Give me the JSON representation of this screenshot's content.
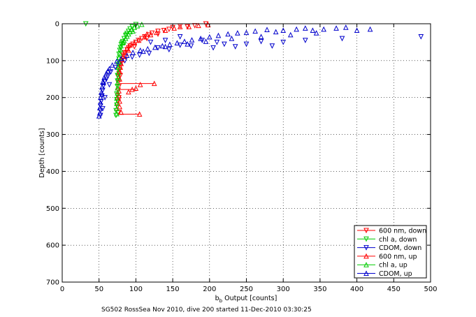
{
  "chart_data": {
    "type": "scatter",
    "xlabel": "b",
    "xlabel_sub": "b",
    "xlabel_rest": " Output [counts]",
    "ylabel": "Depth [counts]",
    "xlim": [
      0,
      500
    ],
    "ylim": [
      700,
      0
    ],
    "y_reversed": true,
    "xticks": [
      0,
      50,
      100,
      150,
      200,
      250,
      300,
      350,
      400,
      450,
      500
    ],
    "yticks": [
      0,
      100,
      200,
      300,
      400,
      500,
      600,
      700
    ],
    "grid": true,
    "legend_position": "bottom-right",
    "footer": "SG502 RossSea Nov 2010, dive 200 started 11-Dec-2010 03:30:25",
    "series": [
      {
        "name": "600 nm, down",
        "color": "#ff0000",
        "marker": "triangle-down",
        "points": [
          [
            195,
            0
          ],
          [
            180,
            5
          ],
          [
            170,
            8
          ],
          [
            160,
            6
          ],
          [
            150,
            10
          ],
          [
            145,
            15
          ],
          [
            138,
            18
          ],
          [
            130,
            20
          ],
          [
            122,
            25
          ],
          [
            118,
            30
          ],
          [
            112,
            35
          ],
          [
            108,
            40
          ],
          [
            104,
            45
          ],
          [
            100,
            50
          ],
          [
            96,
            55
          ],
          [
            92,
            60
          ],
          [
            90,
            65
          ],
          [
            88,
            70
          ],
          [
            85,
            78
          ],
          [
            83,
            85
          ],
          [
            82,
            95
          ],
          [
            80,
            105
          ],
          [
            79,
            115
          ],
          [
            78,
            125
          ],
          [
            77,
            135
          ],
          [
            76,
            145
          ],
          [
            76,
            160
          ],
          [
            77,
            170
          ],
          [
            76,
            180
          ],
          [
            75,
            195
          ],
          [
            76,
            210
          ],
          [
            75,
            225
          ],
          [
            76,
            240
          ],
          [
            130,
            28
          ],
          [
            115,
            40
          ],
          [
            98,
            62
          ],
          [
            86,
            90
          ],
          [
            79,
            140
          ],
          [
            77,
            200
          ]
        ]
      },
      {
        "name": "chl a, down",
        "color": "#00cc00",
        "marker": "triangle-down",
        "points": [
          [
            32,
            0
          ],
          [
            100,
            2
          ],
          [
            95,
            8
          ],
          [
            92,
            14
          ],
          [
            90,
            20
          ],
          [
            88,
            26
          ],
          [
            86,
            32
          ],
          [
            84,
            40
          ],
          [
            82,
            48
          ],
          [
            80,
            56
          ],
          [
            79,
            64
          ],
          [
            78,
            72
          ],
          [
            77,
            82
          ],
          [
            77,
            95
          ],
          [
            76,
            110
          ],
          [
            76,
            125
          ],
          [
            75,
            140
          ],
          [
            75,
            155
          ],
          [
            75,
            170
          ],
          [
            74,
            190
          ],
          [
            74,
            205
          ],
          [
            74,
            220
          ],
          [
            73,
            235
          ],
          [
            73,
            248
          ],
          [
            87,
            30
          ],
          [
            81,
            52
          ]
        ]
      },
      {
        "name": "CDOM, down",
        "color": "#0000cc",
        "marker": "triangle-down",
        "points": [
          [
            487,
            35
          ],
          [
            380,
            40
          ],
          [
            330,
            45
          ],
          [
            300,
            50
          ],
          [
            270,
            48
          ],
          [
            250,
            55
          ],
          [
            235,
            62
          ],
          [
            220,
            55
          ],
          [
            205,
            65
          ],
          [
            190,
            45
          ],
          [
            175,
            60
          ],
          [
            160,
            58
          ],
          [
            145,
            70
          ],
          [
            130,
            65
          ],
          [
            118,
            80
          ],
          [
            105,
            85
          ],
          [
            95,
            90
          ],
          [
            85,
            100
          ],
          [
            78,
            108
          ],
          [
            72,
            118
          ],
          [
            66,
            130
          ],
          [
            62,
            142
          ],
          [
            58,
            155
          ],
          [
            56,
            168
          ],
          [
            55,
            180
          ],
          [
            54,
            195
          ],
          [
            53,
            210
          ],
          [
            52,
            222
          ],
          [
            52,
            235
          ],
          [
            52,
            248
          ],
          [
            60,
            150
          ],
          [
            64,
            165
          ],
          [
            58,
            200
          ],
          [
            55,
            230
          ],
          [
            160,
            35
          ],
          [
            120,
            50
          ],
          [
            140,
            45
          ],
          [
            210,
            50
          ],
          [
            285,
            60
          ]
        ]
      },
      {
        "name": "600 nm, up",
        "color": "#ff0000",
        "marker": "triangle-up",
        "points": [
          [
            198,
            3
          ],
          [
            185,
            5
          ],
          [
            172,
            8
          ],
          [
            160,
            8
          ],
          [
            152,
            12
          ],
          [
            140,
            18
          ],
          [
            128,
            24
          ],
          [
            120,
            30
          ],
          [
            112,
            36
          ],
          [
            104,
            45
          ],
          [
            98,
            52
          ],
          [
            92,
            58
          ],
          [
            88,
            68
          ],
          [
            85,
            78
          ],
          [
            83,
            88
          ],
          [
            81,
            98
          ],
          [
            80,
            108
          ],
          [
            79,
            118
          ],
          [
            78,
            130
          ],
          [
            125,
            162
          ],
          [
            106,
            165
          ],
          [
            100,
            175
          ],
          [
            95,
            178
          ],
          [
            90,
            185
          ],
          [
            105,
            245
          ],
          [
            80,
            240
          ],
          [
            78,
            225
          ],
          [
            78,
            210
          ],
          [
            77,
            195
          ],
          [
            77,
            182
          ],
          [
            78,
            150
          ],
          [
            115,
            28
          ],
          [
            90,
            72
          ]
        ]
      },
      {
        "name": "chl a, up",
        "color": "#00cc00",
        "marker": "triangle-up",
        "points": [
          [
            108,
            2
          ],
          [
            102,
            6
          ],
          [
            98,
            10
          ],
          [
            94,
            16
          ],
          [
            92,
            22
          ],
          [
            90,
            28
          ],
          [
            88,
            34
          ],
          [
            86,
            40
          ],
          [
            84,
            46
          ],
          [
            82,
            52
          ],
          [
            80,
            60
          ],
          [
            79,
            70
          ],
          [
            78,
            80
          ],
          [
            77,
            92
          ],
          [
            77,
            104
          ],
          [
            76,
            118
          ],
          [
            76,
            132
          ],
          [
            76,
            146
          ],
          [
            75,
            160
          ],
          [
            75,
            174
          ],
          [
            75,
            188
          ],
          [
            74,
            202
          ],
          [
            74,
            216
          ],
          [
            74,
            230
          ],
          [
            74,
            244
          ],
          [
            96,
            20
          ],
          [
            83,
            50
          ]
        ]
      },
      {
        "name": "CDOM, up",
        "color": "#0000cc",
        "marker": "triangle-up",
        "points": [
          [
            418,
            15
          ],
          [
            400,
            18
          ],
          [
            385,
            10
          ],
          [
            372,
            12
          ],
          [
            355,
            15
          ],
          [
            340,
            18
          ],
          [
            330,
            12
          ],
          [
            318,
            15
          ],
          [
            300,
            18
          ],
          [
            290,
            22
          ],
          [
            278,
            16
          ],
          [
            262,
            20
          ],
          [
            250,
            24
          ],
          [
            238,
            25
          ],
          [
            225,
            28
          ],
          [
            212,
            32
          ],
          [
            200,
            36
          ],
          [
            188,
            40
          ],
          [
            176,
            44
          ],
          [
            166,
            48
          ],
          [
            156,
            52
          ],
          [
            146,
            56
          ],
          [
            136,
            60
          ],
          [
            126,
            64
          ],
          [
            116,
            68
          ],
          [
            106,
            72
          ],
          [
            96,
            78
          ],
          [
            88,
            86
          ],
          [
            80,
            94
          ],
          [
            74,
            102
          ],
          [
            68,
            112
          ],
          [
            64,
            122
          ],
          [
            60,
            134
          ],
          [
            57,
            146
          ],
          [
            55,
            158
          ],
          [
            54,
            172
          ],
          [
            53,
            186
          ],
          [
            52,
            200
          ],
          [
            52,
            214
          ],
          [
            51,
            228
          ],
          [
            51,
            242
          ],
          [
            50,
            250
          ],
          [
            345,
            25
          ],
          [
            310,
            30
          ],
          [
            270,
            35
          ],
          [
            230,
            40
          ],
          [
            195,
            48
          ],
          [
            170,
            55
          ],
          [
            140,
            62
          ],
          [
            110,
            75
          ],
          [
            62,
            128
          ],
          [
            56,
            160
          ],
          [
            54,
            190
          ]
        ]
      }
    ],
    "connected_traces": [
      {
        "series": "600 nm, up",
        "color": "#ff0000",
        "points": [
          [
            78,
            162
          ],
          [
            125,
            162
          ]
        ]
      },
      {
        "series": "600 nm, up",
        "color": "#ff0000",
        "points": [
          [
            77,
            178
          ],
          [
            100,
            178
          ]
        ]
      },
      {
        "series": "600 nm, up",
        "color": "#ff0000",
        "points": [
          [
            76,
            245
          ],
          [
            105,
            245
          ]
        ]
      }
    ]
  }
}
